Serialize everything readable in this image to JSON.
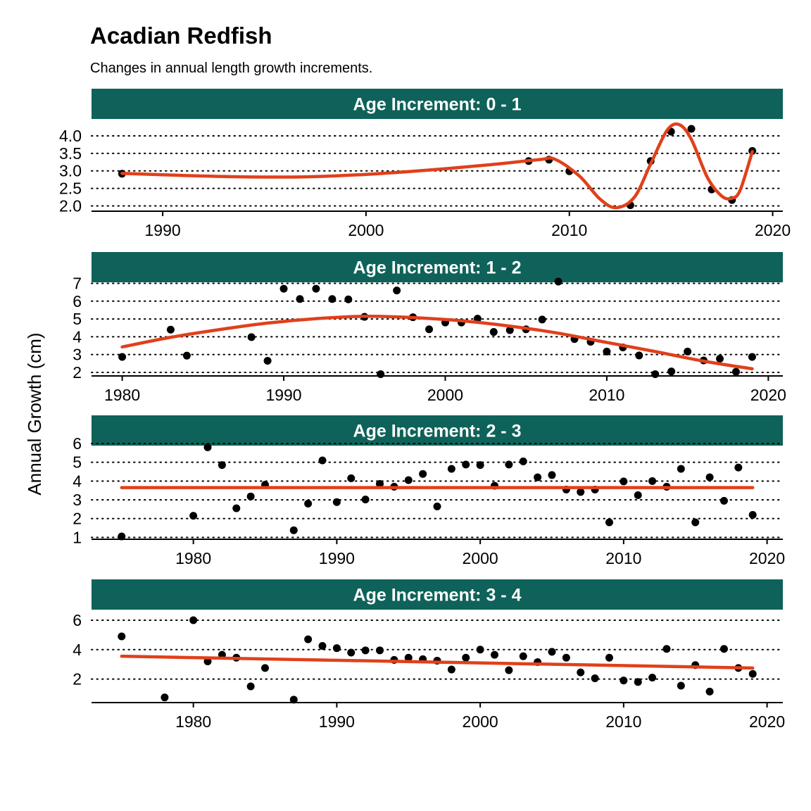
{
  "title": "Acadian Redfish",
  "subtitle": "Changes in annual length growth increments.",
  "ylabel": "Annual Growth  (cm)",
  "colors": {
    "strip": "#0e6259",
    "line": "#e0401b",
    "points": "#000000"
  },
  "chart_data": [
    {
      "type": "scatter",
      "panel": "Age Increment: 0 - 1",
      "xticks": [
        1990,
        2000,
        2010,
        2020
      ],
      "yticks": [
        "2.0",
        "2.5",
        "3.0",
        "3.5",
        "4.0"
      ],
      "xlim": [
        1986.5,
        2020.5
      ],
      "ylim": [
        1.85,
        4.3
      ],
      "grid": "horizontal dotted",
      "points": {
        "x": [
          1988,
          2008,
          2009,
          2010,
          2013,
          2014,
          2015,
          2016,
          2017,
          2018,
          2019
        ],
        "y": [
          2.92,
          3.28,
          3.32,
          2.99,
          2.02,
          3.28,
          4.12,
          4.2,
          2.47,
          2.17,
          3.57
        ]
      },
      "fit": {
        "style": "smooth",
        "x": [
          1988,
          1991,
          1994,
          1997,
          2000,
          2003,
          2006,
          2008.5,
          2009.3,
          2010.5,
          2011.5,
          2012.3,
          2013.2,
          2014,
          2014.8,
          2015.4,
          2016,
          2016.8,
          2017.5,
          2018,
          2018.4,
          2019
        ],
        "y": [
          2.93,
          2.87,
          2.83,
          2.83,
          2.9,
          3.02,
          3.17,
          3.32,
          3.33,
          2.85,
          2.2,
          1.95,
          2.25,
          3.2,
          4.15,
          4.32,
          3.9,
          2.8,
          2.28,
          2.22,
          2.45,
          3.55
        ]
      }
    },
    {
      "type": "scatter",
      "panel": "Age Increment: 1 - 2",
      "xticks": [
        1980,
        1990,
        2000,
        2010,
        2020
      ],
      "yticks": [
        "2",
        "3",
        "4",
        "5",
        "6",
        "7"
      ],
      "xlim": [
        1978.1,
        2020.9
      ],
      "ylim": [
        1.8,
        7.1
      ],
      "grid": "horizontal dotted",
      "points": {
        "x": [
          1980,
          1983,
          1984,
          1988,
          1989,
          1990,
          1991,
          1992,
          1993,
          1994,
          1995,
          1996,
          1997,
          1998,
          1999,
          2000,
          2001,
          2002,
          2003,
          2004,
          2005,
          2006,
          2007,
          2008,
          2009,
          2010,
          2011,
          2012,
          2013,
          2014,
          2015,
          2016,
          2017,
          2018,
          2019
        ],
        "y": [
          2.87,
          4.4,
          2.94,
          3.98,
          2.65,
          6.7,
          6.12,
          6.7,
          6.12,
          6.1,
          5.12,
          1.9,
          6.6,
          5.1,
          4.42,
          4.8,
          4.8,
          5.02,
          4.27,
          4.37,
          4.42,
          4.97,
          7.1,
          3.87,
          3.72,
          3.17,
          3.4,
          2.95,
          1.9,
          2.05,
          3.17,
          2.67,
          2.77,
          2.03,
          2.87
        ]
      },
      "fit": {
        "style": "smooth",
        "x": [
          1980,
          1983,
          1986,
          1989,
          1992,
          1995,
          1998,
          2001,
          2004,
          2007,
          2010,
          2013,
          2016,
          2019
        ],
        "y": [
          3.43,
          3.97,
          4.4,
          4.77,
          5.02,
          5.15,
          5.08,
          4.9,
          4.6,
          4.2,
          3.68,
          3.17,
          2.63,
          2.2
        ]
      }
    },
    {
      "type": "scatter",
      "panel": "Age Increment: 2 - 3",
      "xticks": [
        1980,
        1990,
        2000,
        2010,
        2020
      ],
      "yticks": [
        "1",
        "2",
        "3",
        "4",
        "5",
        "6"
      ],
      "xlim": [
        1972.9,
        2021.1
      ],
      "ylim": [
        0.9,
        6.0
      ],
      "grid": "horizontal dotted",
      "points": {
        "x": [
          1975,
          1980,
          1981,
          1982,
          1983,
          1984,
          1985,
          1987,
          1988,
          1989,
          1990,
          1991,
          1992,
          1993,
          1994,
          1995,
          1996,
          1997,
          1998,
          1999,
          2000,
          2001,
          2002,
          2003,
          2004,
          2005,
          2006,
          2007,
          2008,
          2009,
          2010,
          2011,
          2012,
          2013,
          2014,
          2015,
          2016,
          2017,
          2018,
          2019
        ],
        "y": [
          1.05,
          2.15,
          5.8,
          4.85,
          2.55,
          3.18,
          3.8,
          1.38,
          2.8,
          5.1,
          2.88,
          4.15,
          3.02,
          3.85,
          3.7,
          4.05,
          4.38,
          2.65,
          4.65,
          4.88,
          4.85,
          3.75,
          4.88,
          5.05,
          4.2,
          4.32,
          3.55,
          3.42,
          3.55,
          1.8,
          3.98,
          3.25,
          4.0,
          3.7,
          4.65,
          1.8,
          4.2,
          2.95,
          4.72,
          2.2
        ]
      },
      "fit": {
        "style": "linear",
        "x": [
          1975,
          2019
        ],
        "y": [
          3.65,
          3.65
        ]
      }
    },
    {
      "type": "scatter",
      "panel": "Age Increment: 3 - 4",
      "xticks": [
        1980,
        1990,
        2000,
        2010,
        2020
      ],
      "yticks": [
        "2",
        "4",
        "6"
      ],
      "xlim": [
        1972.9,
        2021.1
      ],
      "ylim": [
        0.4,
        7.1
      ],
      "grid": "horizontal dotted",
      "points": {
        "x": [
          1975,
          1978,
          1980,
          1981,
          1982,
          1983,
          1984,
          1985,
          1987,
          1988,
          1989,
          1990,
          1991,
          1992,
          1993,
          1994,
          1995,
          1996,
          1997,
          1998,
          1999,
          2000,
          2001,
          2002,
          2003,
          2004,
          2005,
          2006,
          2007,
          2008,
          2009,
          2010,
          2011,
          2012,
          2013,
          2014,
          2015,
          2016,
          2017,
          2018,
          2019
        ],
        "y": [
          4.9,
          0.75,
          6.0,
          3.2,
          3.65,
          3.45,
          1.5,
          2.75,
          0.6,
          4.7,
          4.25,
          4.1,
          3.8,
          3.95,
          3.95,
          3.3,
          3.45,
          3.35,
          3.25,
          2.65,
          3.45,
          4.0,
          3.65,
          2.6,
          3.55,
          3.15,
          3.85,
          3.45,
          2.45,
          2.05,
          3.45,
          1.9,
          1.8,
          2.1,
          4.05,
          1.55,
          2.95,
          1.15,
          4.05,
          2.75,
          2.35
        ]
      },
      "fit": {
        "style": "linear",
        "x": [
          1975,
          2019
        ],
        "y": [
          3.55,
          2.75
        ]
      }
    }
  ]
}
